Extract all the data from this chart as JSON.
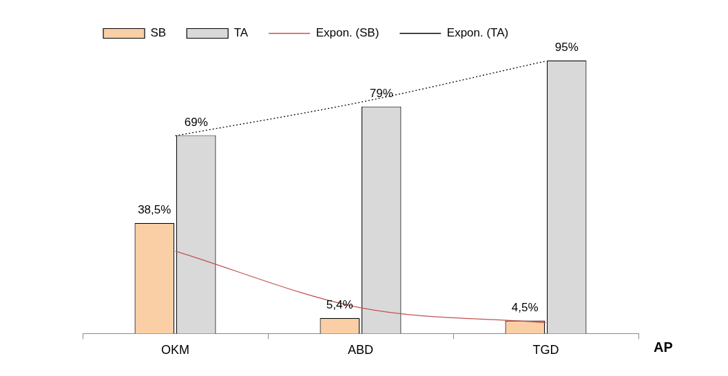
{
  "chart_data": {
    "type": "bar",
    "xlabel": "AP",
    "categories": [
      "OKM",
      "ABD",
      "TGD"
    ],
    "grid": false,
    "legend": "top left",
    "series": [
      {
        "name": "SB",
        "color": "#fbcfa6",
        "values": [
          38.5,
          5.4,
          4.5
        ],
        "value_labels": [
          "38,5%",
          "5,4%",
          "4,5%"
        ]
      },
      {
        "name": "TA",
        "color": "#d9d9d9",
        "values": [
          69,
          79,
          95
        ],
        "value_labels": [
          "69%",
          "79%",
          "95%"
        ]
      },
      {
        "name": "Expon. (SB)",
        "type": "line",
        "color": "#c0504d",
        "values": [
          28.7,
          9,
          3.8
        ],
        "line_style": "solid",
        "marker": "none"
      },
      {
        "name": "Expon. (TA)",
        "type": "line",
        "color": "#000000",
        "values": [
          68.8,
          80.5,
          94.8
        ],
        "line_style": "dotted",
        "marker": "none"
      }
    ]
  }
}
